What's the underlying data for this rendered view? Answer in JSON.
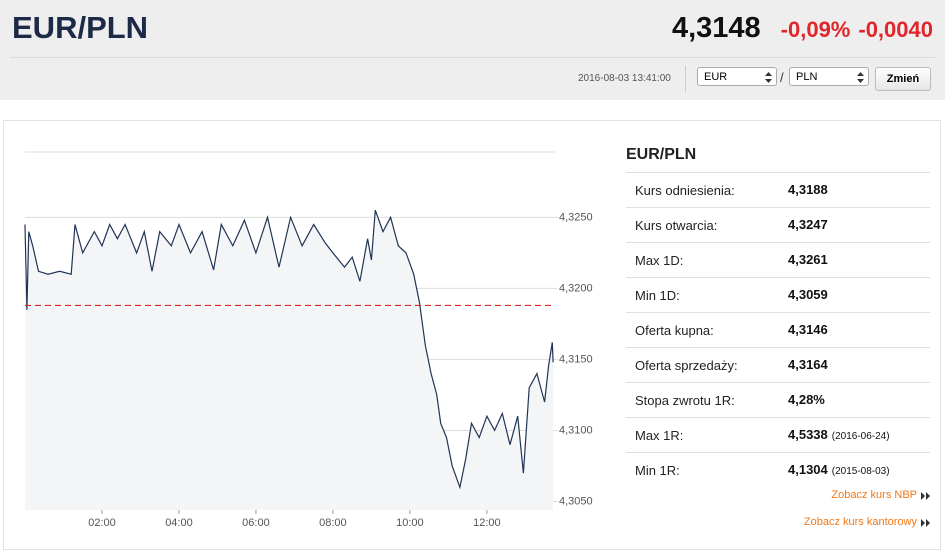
{
  "header": {
    "title": "EUR/PLN",
    "price": "4,3148",
    "change_pct": "-0,09%",
    "change_abs": "-0,0040",
    "timestamp": "2016-08-03 13:41:00",
    "from_currency": "EUR",
    "separator": "/",
    "to_currency": "PLN",
    "button": "Zmień"
  },
  "chart_data": {
    "type": "line",
    "x": [
      0.0,
      0.05,
      0.1,
      0.2,
      0.35,
      0.6,
      0.9,
      1.2,
      1.3,
      1.5,
      1.8,
      2.0,
      2.2,
      2.4,
      2.6,
      2.9,
      3.1,
      3.3,
      3.5,
      3.8,
      4.0,
      4.3,
      4.6,
      4.9,
      5.1,
      5.4,
      5.7,
      6.0,
      6.3,
      6.6,
      6.9,
      7.2,
      7.5,
      7.8,
      8.0,
      8.3,
      8.5,
      8.7,
      8.9,
      9.0,
      9.1,
      9.3,
      9.5,
      9.7,
      9.9,
      10.1,
      10.25,
      10.4,
      10.55,
      10.7,
      10.8,
      10.95,
      11.1,
      11.3,
      11.45,
      11.6,
      11.8,
      12.0,
      12.2,
      12.4,
      12.6,
      12.8,
      12.95,
      13.1,
      13.3,
      13.5,
      13.6,
      13.7,
      13.72
    ],
    "series": [
      {
        "color": "#1f3556",
        "values": [
          4.3245,
          4.3185,
          4.324,
          4.323,
          4.3212,
          4.321,
          4.3212,
          4.321,
          4.3245,
          4.3225,
          4.324,
          4.323,
          4.3245,
          4.3235,
          4.3245,
          4.3225,
          4.324,
          4.3212,
          4.324,
          4.323,
          4.3245,
          4.3225,
          4.324,
          4.3213,
          4.3245,
          4.323,
          4.3248,
          4.3225,
          4.325,
          4.3215,
          4.325,
          4.323,
          4.3245,
          4.3232,
          4.3225,
          4.3215,
          4.3222,
          4.3205,
          4.3235,
          4.322,
          4.3255,
          4.324,
          4.325,
          4.323,
          4.3225,
          4.321,
          4.319,
          4.316,
          4.314,
          4.3125,
          4.3105,
          4.3095,
          4.3075,
          4.306,
          4.308,
          4.3105,
          4.3095,
          4.311,
          4.31,
          4.3112,
          4.309,
          4.311,
          4.307,
          4.313,
          4.314,
          4.312,
          4.3145,
          4.3162,
          4.3148
        ]
      }
    ],
    "reference_line": 4.3188,
    "reference_color": "#e0262b",
    "xlim": [
      0,
      13.77
    ],
    "xticks": [
      {
        "value": 2,
        "label": "02:00"
      },
      {
        "value": 4,
        "label": "04:00"
      },
      {
        "value": 6,
        "label": "06:00"
      },
      {
        "value": 8,
        "label": "08:00"
      },
      {
        "value": 10,
        "label": "10:00"
      },
      {
        "value": 12,
        "label": "12:00"
      }
    ],
    "ylim": [
      4.3044,
      4.3296
    ],
    "yticks": [
      {
        "value": 4.305,
        "label": "4,3050"
      },
      {
        "value": 4.31,
        "label": "4,3100"
      },
      {
        "value": 4.315,
        "label": "4,3150"
      },
      {
        "value": 4.32,
        "label": "4,3200"
      },
      {
        "value": 4.325,
        "label": "4,3250"
      }
    ],
    "grid": true
  },
  "table": {
    "title": "EUR/PLN",
    "rows": [
      {
        "label": "Kurs odniesienia:",
        "value": "4,3188"
      },
      {
        "label": "Kurs otwarcia:",
        "value": "4,3247"
      },
      {
        "label": "Max 1D:",
        "value": "4,3261"
      },
      {
        "label": "Min 1D:",
        "value": "4,3059"
      },
      {
        "label": "Oferta kupna:",
        "value": "4,3146"
      },
      {
        "label": "Oferta sprzedaży:",
        "value": "4,3164"
      },
      {
        "label": "Stopa zwrotu 1R:",
        "value": "4,28%"
      },
      {
        "label": "Max 1R:",
        "value": "4,5338",
        "note": "(2016-06-24)"
      },
      {
        "label": "Min 1R:",
        "value": "4,1304",
        "note": "(2015-08-03)"
      }
    ]
  },
  "links": [
    "Zobacz kurs NBP",
    "Zobacz kurs kantorowy"
  ]
}
